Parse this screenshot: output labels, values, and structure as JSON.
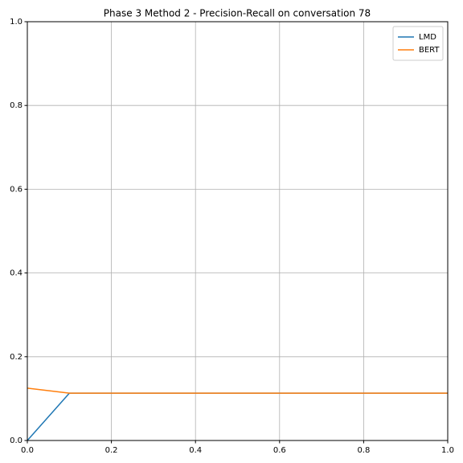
{
  "chart_data": {
    "type": "line",
    "title": "Phase 3 Method 2 - Precision-Recall on conversation 78",
    "x": [
      0,
      0.1,
      1
    ],
    "series": [
      {
        "name": "LMD",
        "color": "#1f77b4",
        "values": [
          0,
          0.113,
          0.113
        ]
      },
      {
        "name": "BERT",
        "color": "#ff7f0e",
        "values": [
          0.125,
          0.113,
          0.113
        ]
      }
    ],
    "xlim": [
      0,
      1
    ],
    "ylim": [
      0,
      1
    ],
    "xticks": [
      {
        "value": 0,
        "label": "0.0"
      },
      0.2,
      0.4,
      0.6,
      0.8,
      {
        "value": 1,
        "label": "1.0"
      }
    ],
    "yticks": [
      {
        "value": 0,
        "label": "0.0"
      },
      0.2,
      0.4,
      0.6,
      0.8,
      {
        "value": 1,
        "label": "1.0"
      }
    ],
    "grid": true,
    "legend": "upper right"
  }
}
